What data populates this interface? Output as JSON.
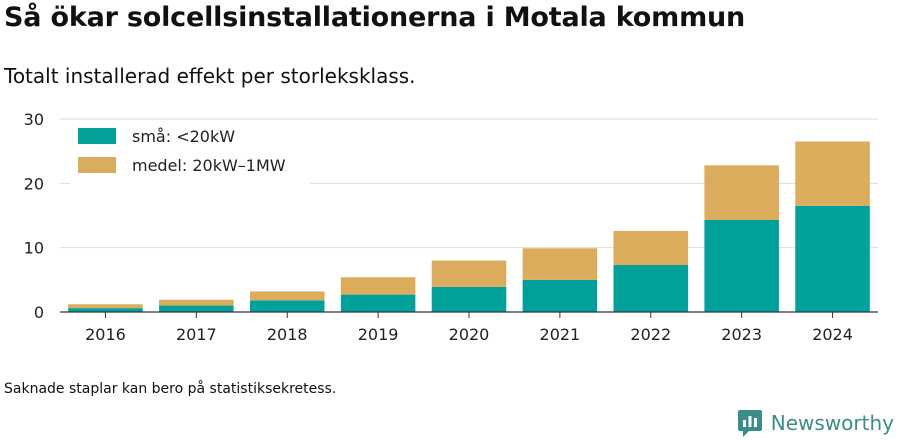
{
  "header": {
    "title": "Så ökar solcellsinstallationerna i Motala kommun",
    "subtitle": "Totalt installerad effekt per storleksklass."
  },
  "footnote": "Saknade staplar kan bero på statistiksekretess.",
  "brand": {
    "name": "Newsworthy",
    "icon": "newsworthy-logo-icon",
    "color": "#3a8d88"
  },
  "chart_data": {
    "type": "bar",
    "stacked": true,
    "categories": [
      "2016",
      "2017",
      "2018",
      "2019",
      "2020",
      "2021",
      "2022",
      "2023",
      "2024"
    ],
    "series": [
      {
        "name": "små: <20kW",
        "color": "#00a19a",
        "values": [
          0.6,
          1.0,
          1.8,
          2.7,
          3.9,
          5.0,
          7.3,
          14.3,
          16.5
        ]
      },
      {
        "name": "medel: 20kW–1MW",
        "color": "#dbac5c",
        "values": [
          0.6,
          0.9,
          1.4,
          2.7,
          4.1,
          4.9,
          5.3,
          8.5,
          10.0
        ]
      }
    ],
    "yticks": [
      "0",
      "10",
      "20",
      "30"
    ],
    "ylim": [
      0,
      30
    ],
    "grid": true,
    "legend": "top-left"
  }
}
